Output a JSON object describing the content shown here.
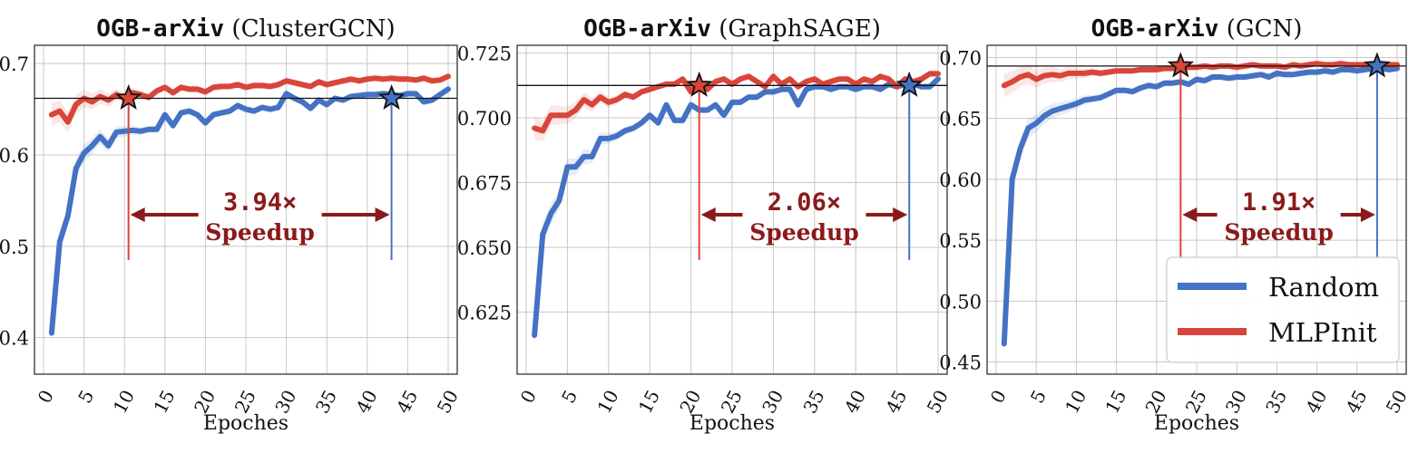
{
  "chart_data": [
    {
      "type": "line",
      "title_mono": "OGB-arXiv",
      "title_rest": " (ClusterGCN)",
      "xlabel": "Epoches",
      "ylabel": "",
      "xlim": [
        0,
        50
      ],
      "ylim": [
        0.36,
        0.72
      ],
      "x_ticks": [
        0,
        5,
        10,
        15,
        20,
        25,
        30,
        35,
        40,
        45,
        50
      ],
      "y_ticks": [
        0.4,
        0.5,
        0.6,
        0.7
      ],
      "y_tick_labels": [
        "0.4",
        "0.5",
        "0.6",
        "0.7"
      ],
      "grid": true,
      "reference_value": 0.662,
      "speedup_label": "3.94×",
      "speedup_word": "Speedup",
      "stars": {
        "mlpinit_epoch": 10.5,
        "random_epoch": 43
      },
      "series": [
        {
          "name": "Random",
          "color": "#4472c4",
          "x": [
            1,
            2,
            3,
            4,
            5,
            6,
            7,
            8,
            9,
            10,
            11,
            12,
            13,
            14,
            15,
            16,
            17,
            18,
            19,
            20,
            21,
            22,
            23,
            24,
            25,
            26,
            27,
            28,
            29,
            30,
            31,
            32,
            33,
            34,
            35,
            36,
            37,
            38,
            39,
            40,
            41,
            42,
            43,
            44,
            45,
            46,
            47,
            48,
            49,
            50
          ],
          "values": [
            0.405,
            0.505,
            0.533,
            0.585,
            0.602,
            0.61,
            0.62,
            0.61,
            0.625,
            0.626,
            0.627,
            0.626,
            0.628,
            0.628,
            0.644,
            0.632,
            0.646,
            0.648,
            0.644,
            0.635,
            0.644,
            0.646,
            0.648,
            0.654,
            0.65,
            0.648,
            0.652,
            0.65,
            0.652,
            0.667,
            0.662,
            0.658,
            0.651,
            0.66,
            0.655,
            0.662,
            0.66,
            0.664,
            0.665,
            0.666,
            0.666,
            0.667,
            0.666,
            0.665,
            0.667,
            0.667,
            0.658,
            0.66,
            0.666,
            0.672
          ]
        },
        {
          "name": "MLPInit",
          "color": "#d9453a",
          "x": [
            1,
            2,
            3,
            4,
            5,
            6,
            7,
            8,
            9,
            10,
            11,
            12,
            13,
            14,
            15,
            16,
            17,
            18,
            19,
            20,
            21,
            22,
            23,
            24,
            25,
            26,
            27,
            28,
            29,
            30,
            31,
            32,
            33,
            34,
            35,
            36,
            37,
            38,
            39,
            40,
            41,
            42,
            43,
            44,
            45,
            46,
            47,
            48,
            49,
            50
          ],
          "values": [
            0.644,
            0.648,
            0.636,
            0.655,
            0.662,
            0.658,
            0.664,
            0.66,
            0.666,
            0.662,
            0.668,
            0.666,
            0.663,
            0.67,
            0.674,
            0.668,
            0.674,
            0.672,
            0.672,
            0.669,
            0.674,
            0.675,
            0.675,
            0.677,
            0.674,
            0.676,
            0.676,
            0.675,
            0.677,
            0.681,
            0.679,
            0.677,
            0.675,
            0.68,
            0.677,
            0.679,
            0.681,
            0.683,
            0.681,
            0.683,
            0.684,
            0.683,
            0.684,
            0.683,
            0.683,
            0.682,
            0.684,
            0.681,
            0.682,
            0.686
          ]
        }
      ]
    },
    {
      "type": "line",
      "title_mono": "OGB-arXiv",
      "title_rest": " (GraphSAGE)",
      "xlabel": "Epoches",
      "ylabel": "",
      "xlim": [
        0,
        50
      ],
      "ylim": [
        0.601,
        0.728
      ],
      "x_ticks": [
        0,
        5,
        10,
        15,
        20,
        25,
        30,
        35,
        40,
        45,
        50
      ],
      "y_ticks": [
        0.625,
        0.65,
        0.675,
        0.7,
        0.725
      ],
      "y_tick_labels": [
        "0.625",
        "0.650",
        "0.675",
        "0.700",
        "0.725"
      ],
      "grid": true,
      "reference_value": 0.7125,
      "speedup_label": "2.06×",
      "speedup_word": "Speedup",
      "stars": {
        "mlpinit_epoch": 21,
        "random_epoch": 46.5
      },
      "series": [
        {
          "name": "Random",
          "color": "#4472c4",
          "x": [
            1,
            2,
            3,
            4,
            5,
            6,
            7,
            8,
            9,
            10,
            11,
            12,
            13,
            14,
            15,
            16,
            17,
            18,
            19,
            20,
            21,
            22,
            23,
            24,
            25,
            26,
            27,
            28,
            29,
            30,
            31,
            32,
            33,
            34,
            35,
            36,
            37,
            38,
            39,
            40,
            41,
            42,
            43,
            44,
            45,
            46,
            47,
            48,
            49,
            50
          ],
          "values": [
            0.616,
            0.655,
            0.663,
            0.668,
            0.681,
            0.681,
            0.685,
            0.685,
            0.692,
            0.692,
            0.693,
            0.695,
            0.696,
            0.698,
            0.701,
            0.698,
            0.705,
            0.699,
            0.699,
            0.705,
            0.703,
            0.703,
            0.705,
            0.701,
            0.706,
            0.706,
            0.708,
            0.708,
            0.71,
            0.71,
            0.711,
            0.711,
            0.705,
            0.711,
            0.712,
            0.712,
            0.711,
            0.712,
            0.712,
            0.711,
            0.712,
            0.712,
            0.711,
            0.713,
            0.712,
            0.713,
            0.713,
            0.712,
            0.712,
            0.715
          ]
        },
        {
          "name": "MLPInit",
          "color": "#d9453a",
          "x": [
            1,
            2,
            3,
            4,
            5,
            6,
            7,
            8,
            9,
            10,
            11,
            12,
            13,
            14,
            15,
            16,
            17,
            18,
            19,
            20,
            21,
            22,
            23,
            24,
            25,
            26,
            27,
            28,
            29,
            30,
            31,
            32,
            33,
            34,
            35,
            36,
            37,
            38,
            39,
            40,
            41,
            42,
            43,
            44,
            45,
            46,
            47,
            48,
            49,
            50
          ],
          "values": [
            0.696,
            0.695,
            0.701,
            0.701,
            0.701,
            0.703,
            0.707,
            0.705,
            0.708,
            0.706,
            0.707,
            0.709,
            0.708,
            0.71,
            0.711,
            0.712,
            0.713,
            0.713,
            0.715,
            0.71,
            0.714,
            0.711,
            0.714,
            0.715,
            0.713,
            0.715,
            0.716,
            0.714,
            0.712,
            0.716,
            0.713,
            0.715,
            0.712,
            0.714,
            0.715,
            0.713,
            0.714,
            0.715,
            0.715,
            0.713,
            0.715,
            0.714,
            0.716,
            0.715,
            0.712,
            0.715,
            0.714,
            0.715,
            0.717,
            0.717
          ]
        }
      ]
    },
    {
      "type": "line",
      "title_mono": "OGB-arXiv",
      "title_rest": " (GCN)",
      "xlabel": "Epoches",
      "ylabel": "",
      "xlim": [
        0,
        50
      ],
      "ylim": [
        0.44,
        0.71
      ],
      "x_ticks": [
        0,
        5,
        10,
        15,
        20,
        25,
        30,
        35,
        40,
        45,
        50
      ],
      "y_ticks": [
        0.45,
        0.5,
        0.55,
        0.6,
        0.65,
        0.7
      ],
      "y_tick_labels": [
        "0.45",
        "0.50",
        "0.55",
        "0.60",
        "0.65",
        "0.70"
      ],
      "grid": true,
      "reference_value": 0.693,
      "speedup_label": "1.91×",
      "speedup_word": "Speedup",
      "stars": {
        "mlpinit_epoch": 23,
        "random_epoch": 47.5
      },
      "legend": {
        "placement": "lower-right",
        "entries": [
          "Random",
          "MLPInit"
        ]
      },
      "series": [
        {
          "name": "Random",
          "color": "#4472c4",
          "x": [
            1,
            2,
            3,
            4,
            5,
            6,
            7,
            8,
            9,
            10,
            11,
            12,
            13,
            14,
            15,
            16,
            17,
            18,
            19,
            20,
            21,
            22,
            23,
            24,
            25,
            26,
            27,
            28,
            29,
            30,
            31,
            32,
            33,
            34,
            35,
            36,
            37,
            38,
            39,
            40,
            41,
            42,
            43,
            44,
            45,
            46,
            47,
            48,
            49,
            50
          ],
          "values": [
            0.465,
            0.6,
            0.625,
            0.642,
            0.646,
            0.652,
            0.656,
            0.658,
            0.66,
            0.662,
            0.665,
            0.666,
            0.667,
            0.67,
            0.673,
            0.673,
            0.672,
            0.675,
            0.677,
            0.676,
            0.679,
            0.679,
            0.68,
            0.678,
            0.682,
            0.681,
            0.684,
            0.684,
            0.683,
            0.684,
            0.684,
            0.685,
            0.686,
            0.684,
            0.687,
            0.686,
            0.686,
            0.687,
            0.688,
            0.688,
            0.689,
            0.688,
            0.69,
            0.69,
            0.689,
            0.69,
            0.691,
            0.691,
            0.69,
            0.691
          ]
        },
        {
          "name": "MLPInit",
          "color": "#d9453a",
          "x": [
            1,
            2,
            3,
            4,
            5,
            6,
            7,
            8,
            9,
            10,
            11,
            12,
            13,
            14,
            15,
            16,
            17,
            18,
            19,
            20,
            21,
            22,
            23,
            24,
            25,
            26,
            27,
            28,
            29,
            30,
            31,
            32,
            33,
            34,
            35,
            36,
            37,
            38,
            39,
            40,
            41,
            42,
            43,
            44,
            45,
            46,
            47,
            48,
            49,
            50
          ],
          "values": [
            0.677,
            0.68,
            0.684,
            0.686,
            0.682,
            0.685,
            0.686,
            0.685,
            0.687,
            0.687,
            0.687,
            0.688,
            0.687,
            0.688,
            0.689,
            0.689,
            0.689,
            0.69,
            0.69,
            0.69,
            0.691,
            0.691,
            0.691,
            0.692,
            0.692,
            0.693,
            0.692,
            0.693,
            0.693,
            0.692,
            0.693,
            0.694,
            0.693,
            0.693,
            0.693,
            0.692,
            0.694,
            0.693,
            0.694,
            0.695,
            0.694,
            0.694,
            0.695,
            0.694,
            0.694,
            0.694,
            0.695,
            0.695,
            0.694,
            0.694
          ]
        }
      ]
    }
  ]
}
